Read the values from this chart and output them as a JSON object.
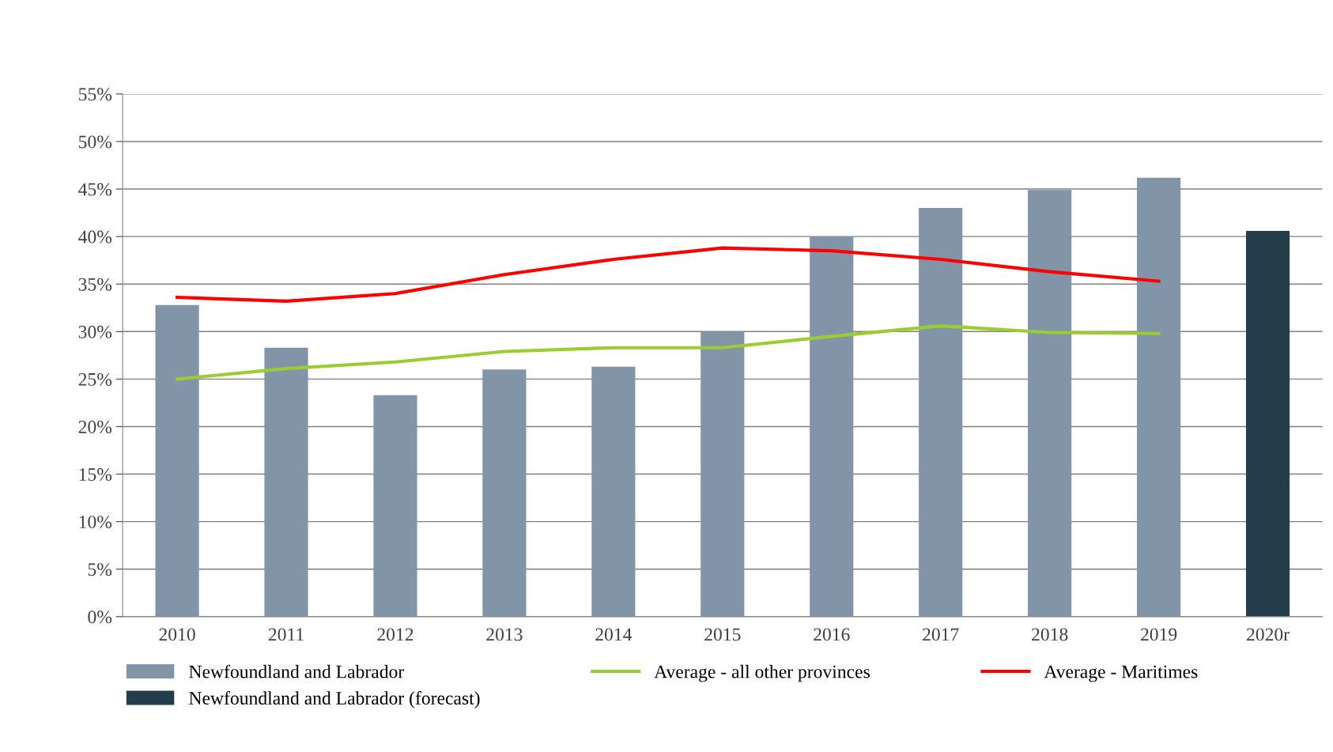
{
  "chart_data": {
    "type": "bar",
    "categories": [
      "2010",
      "2011",
      "2012",
      "2013",
      "2014",
      "2015",
      "2016",
      "2017",
      "2018",
      "2019",
      "2020r"
    ],
    "series": [
      {
        "name": "Newfoundland and Labrador",
        "color": "#8294a7",
        "values": [
          32.8,
          28.3,
          23.3,
          26.0,
          26.3,
          30.0,
          40.0,
          43.0,
          44.9,
          46.2,
          null
        ]
      },
      {
        "name": "Average - all other provinces",
        "type": "line",
        "color": "#9acd32",
        "values": [
          25.0,
          26.1,
          26.8,
          27.9,
          28.3,
          28.3,
          29.5,
          30.6,
          29.9,
          29.8,
          null
        ]
      },
      {
        "name": "Average - Maritimes",
        "type": "line",
        "color": "#ff0000",
        "values": [
          33.6,
          33.2,
          34.0,
          36.0,
          37.6,
          38.8,
          38.5,
          37.6,
          36.3,
          35.3,
          null
        ]
      },
      {
        "name": "Newfoundland and Labrador (forecast)",
        "color": "#233d4a",
        "values": [
          null,
          null,
          null,
          null,
          null,
          null,
          null,
          null,
          null,
          null,
          40.6
        ]
      }
    ],
    "ylim": [
      0,
      55
    ],
    "yticks": [
      {
        "value": 0,
        "label": "0%"
      },
      {
        "value": 5,
        "label": "5%"
      },
      {
        "value": 10,
        "label": "10%"
      },
      {
        "value": 15,
        "label": "15%"
      },
      {
        "value": 20,
        "label": "20%"
      },
      {
        "value": 25,
        "label": "25%"
      },
      {
        "value": 30,
        "label": "30%"
      },
      {
        "value": 35,
        "label": "35%"
      },
      {
        "value": 40,
        "label": "40%"
      },
      {
        "value": 45,
        "label": "45%"
      },
      {
        "value": 50,
        "label": "50%"
      },
      {
        "value": 55,
        "label": "55%"
      }
    ],
    "grid": "y",
    "legend": "bottom",
    "marker": "none",
    "line_style": "solid"
  }
}
